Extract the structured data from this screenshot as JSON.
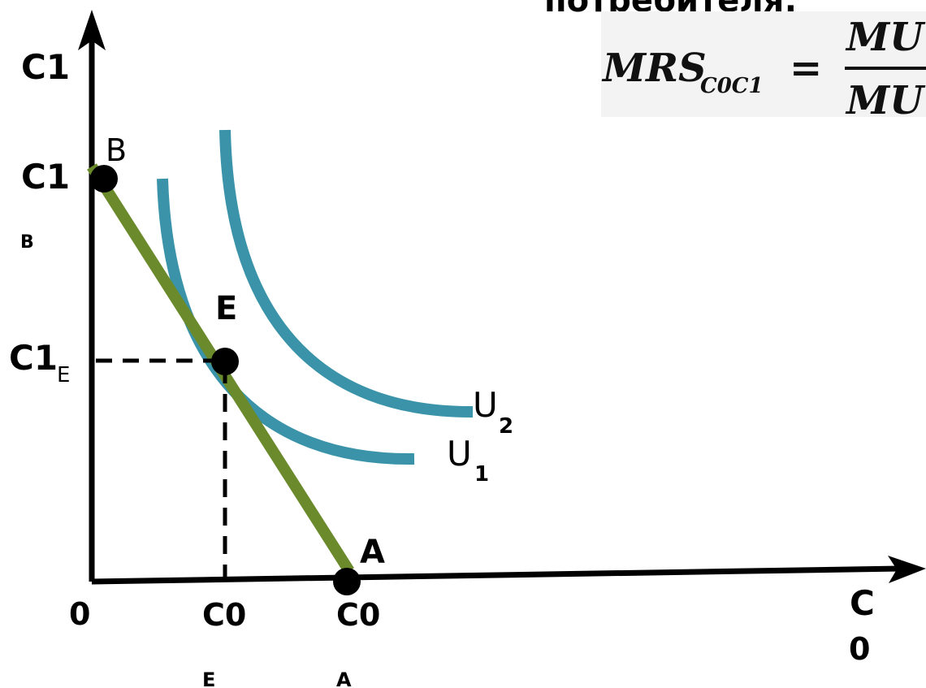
{
  "header_fragment": "потребителя:",
  "formula": {
    "lhs": "MRS",
    "subscript": "C0C1",
    "equals": "=",
    "numerator": "MU",
    "denominator": "MU"
  },
  "axes": {
    "y_label": "C1",
    "x_label_main": "C",
    "x_label_sub": "0",
    "origin": "0"
  },
  "ticks": {
    "y_b_main": "C1",
    "y_b_sub": "B",
    "y_e_main": "C1",
    "y_e_sub": "E",
    "x_e_main": "C0",
    "x_e_sub": "E",
    "x_a_main": "C0",
    "x_a_sub": "A"
  },
  "points": {
    "B": "B",
    "E": "E",
    "A": "A"
  },
  "curves": {
    "u1_main": "U",
    "u1_sub": "1",
    "u2_main": "U",
    "u2_sub": "2"
  },
  "colors": {
    "budget_line": "#6b8a2c",
    "indifference": "#3a93a8",
    "axis": "#000000"
  }
}
